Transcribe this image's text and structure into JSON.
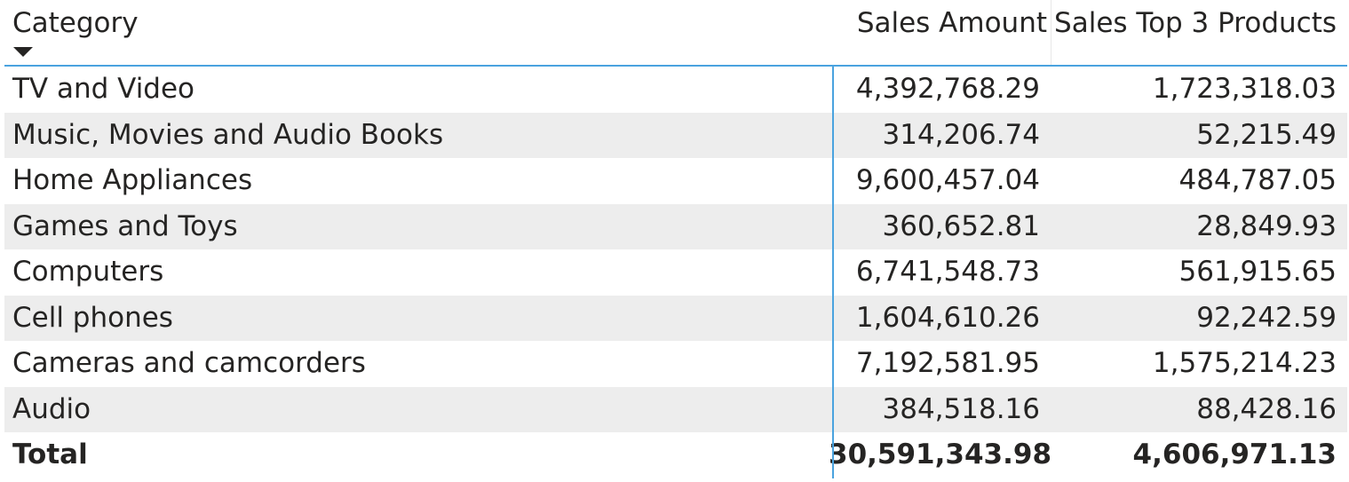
{
  "table": {
    "columns": [
      "Category",
      "Sales Amount",
      "Sales Top 3 Products"
    ],
    "sort": {
      "column": "Category",
      "direction": "descending"
    },
    "rows": [
      {
        "category": "TV and Video",
        "sales_amount": "4,392,768.29",
        "sales_top3": "1,723,318.03"
      },
      {
        "category": "Music, Movies and Audio Books",
        "sales_amount": "314,206.74",
        "sales_top3": "52,215.49"
      },
      {
        "category": "Home Appliances",
        "sales_amount": "9,600,457.04",
        "sales_top3": "484,787.05"
      },
      {
        "category": "Games and Toys",
        "sales_amount": "360,652.81",
        "sales_top3": "28,849.93"
      },
      {
        "category": "Computers",
        "sales_amount": "6,741,548.73",
        "sales_top3": "561,915.65"
      },
      {
        "category": "Cell phones",
        "sales_amount": "1,604,610.26",
        "sales_top3": "92,242.59"
      },
      {
        "category": "Cameras and camcorders",
        "sales_amount": "7,192,581.95",
        "sales_top3": "1,575,214.23"
      },
      {
        "category": "Audio",
        "sales_amount": "384,518.16",
        "sales_top3": "88,428.16"
      }
    ],
    "total": {
      "label": "Total",
      "sales_amount": "30,591,343.98",
      "sales_top3": "4,606,971.13"
    }
  },
  "colors": {
    "accent": "#4aa3df",
    "alt_row": "#ededed",
    "text": "#252423"
  }
}
